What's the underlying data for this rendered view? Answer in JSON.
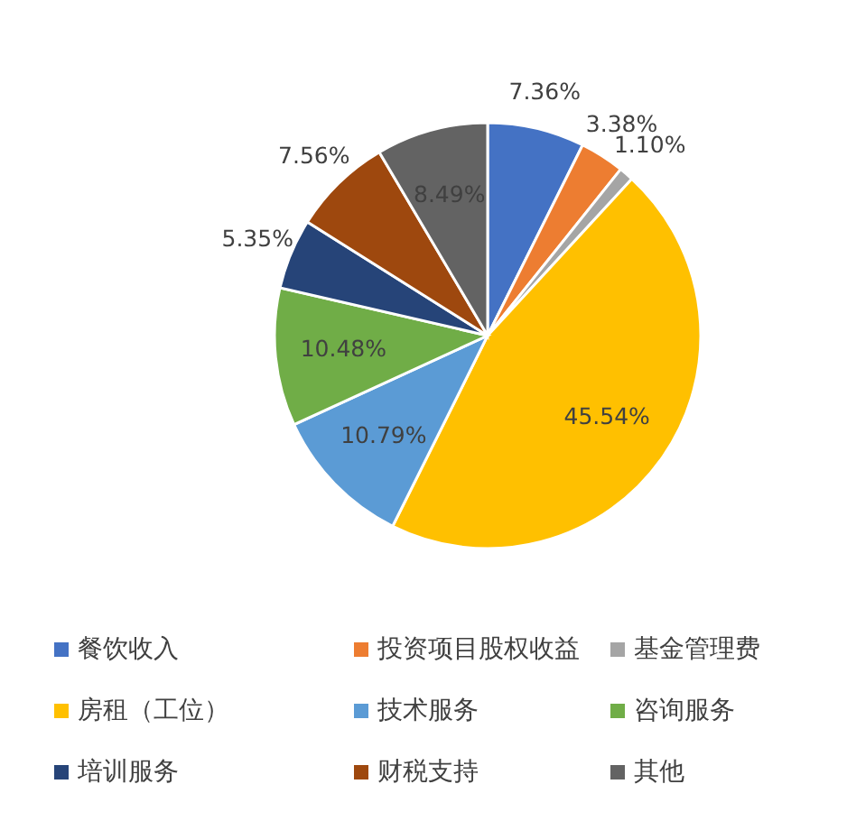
{
  "chart_data": {
    "type": "pie",
    "categories": [
      "餐饮收入",
      "投资项目股权收益",
      "基金管理费",
      "房租（工位）",
      "技术服务",
      "咨询服务",
      "培训服务",
      "财税支持",
      "其他"
    ],
    "values": [
      7.36,
      3.38,
      1.1,
      45.54,
      10.79,
      10.48,
      5.35,
      7.56,
      8.49
    ],
    "colors": [
      "#4472c4",
      "#ed7d31",
      "#a5a5a5",
      "#ffc000",
      "#5b9bd5",
      "#70ad47",
      "#264478",
      "#9e480e",
      "#636363"
    ],
    "value_labels": [
      "7.36%",
      "3.38%",
      "1.10%",
      "45.54%",
      "10.79%",
      "10.48%",
      "5.35%",
      "7.56%",
      "8.49%"
    ],
    "legend": "bottom"
  }
}
